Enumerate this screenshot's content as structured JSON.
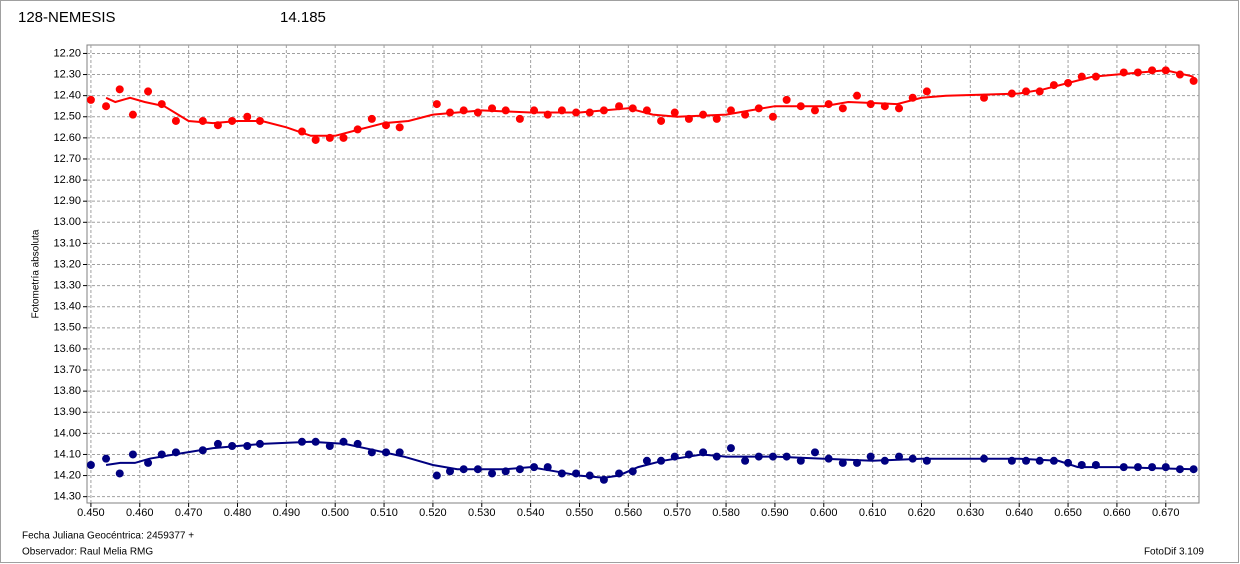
{
  "chart_data": {
    "type": "scatter",
    "title": "128-NEMESIS",
    "subtitle": "14.185",
    "title_color": "#ff0000",
    "subtitle_color": "#000080",
    "ylabel": "Fotometría absoluta",
    "xlabel": "Fecha Juliana Geocéntrica: 2459377 +",
    "observer": "Observador: Raul Melia RMG",
    "software": "FotoDif 3.109",
    "grid": true,
    "y_inverted": true,
    "xlim": [
      0.4492,
      0.6768
    ],
    "ylim": [
      12.16,
      14.33
    ],
    "xticks": [
      {
        "value": 0.45,
        "label": "0.450"
      },
      {
        "value": 0.46,
        "label": "0.460"
      },
      {
        "value": 0.47,
        "label": "0.470"
      },
      {
        "value": 0.48,
        "label": "0.480"
      },
      {
        "value": 0.49,
        "label": "0.490"
      },
      {
        "value": 0.5,
        "label": "0.500"
      },
      {
        "value": 0.51,
        "label": "0.510"
      },
      {
        "value": 0.52,
        "label": "0.520"
      },
      {
        "value": 0.53,
        "label": "0.530"
      },
      {
        "value": 0.54,
        "label": "0.540"
      },
      {
        "value": 0.55,
        "label": "0.550"
      },
      {
        "value": 0.56,
        "label": "0.560"
      },
      {
        "value": 0.57,
        "label": "0.570"
      },
      {
        "value": 0.58,
        "label": "0.580"
      },
      {
        "value": 0.59,
        "label": "0.590"
      },
      {
        "value": 0.6,
        "label": "0.600"
      },
      {
        "value": 0.61,
        "label": "0.610"
      },
      {
        "value": 0.62,
        "label": "0.620"
      },
      {
        "value": 0.63,
        "label": "0.630"
      },
      {
        "value": 0.64,
        "label": "0.640"
      },
      {
        "value": 0.65,
        "label": "0.650"
      },
      {
        "value": 0.66,
        "label": "0.660"
      },
      {
        "value": 0.67,
        "label": "0.670"
      }
    ],
    "yticks": [
      {
        "value": 12.2,
        "label": "12.20"
      },
      {
        "value": 12.3,
        "label": "12.30"
      },
      {
        "value": 12.4,
        "label": "12.40"
      },
      {
        "value": 12.5,
        "label": "12.50"
      },
      {
        "value": 12.6,
        "label": "12.60"
      },
      {
        "value": 12.7,
        "label": "12.70"
      },
      {
        "value": 12.8,
        "label": "12.80"
      },
      {
        "value": 12.9,
        "label": "12.90"
      },
      {
        "value": 13.0,
        "label": "13.00"
      },
      {
        "value": 13.1,
        "label": "13.10"
      },
      {
        "value": 13.2,
        "label": "13.20"
      },
      {
        "value": 13.3,
        "label": "13.30"
      },
      {
        "value": 13.4,
        "label": "13.40"
      },
      {
        "value": 13.5,
        "label": "13.50"
      },
      {
        "value": 13.6,
        "label": "13.60"
      },
      {
        "value": 13.7,
        "label": "13.70"
      },
      {
        "value": 13.8,
        "label": "13.80"
      },
      {
        "value": 13.9,
        "label": "13.90"
      },
      {
        "value": 14.0,
        "label": "14.00"
      },
      {
        "value": 14.1,
        "label": "14.10"
      },
      {
        "value": 14.2,
        "label": "14.20"
      },
      {
        "value": 14.3,
        "label": "14.30"
      }
    ],
    "series": [
      {
        "style": "points",
        "color": "#ff0000",
        "x": [
          0.45,
          0.4531,
          0.4559,
          0.4586,
          0.4617,
          0.4645,
          0.4674,
          0.4729,
          0.476,
          0.4789,
          0.482,
          0.4846,
          0.4932,
          0.496,
          0.4989,
          0.5017,
          0.5046,
          0.5075,
          0.5104,
          0.5132,
          0.5208,
          0.5235,
          0.5263,
          0.5292,
          0.5321,
          0.5349,
          0.5378,
          0.5407,
          0.5435,
          0.5464,
          0.5493,
          0.5521,
          0.555,
          0.5581,
          0.5609,
          0.5638,
          0.5667,
          0.5695,
          0.5724,
          0.5753,
          0.5781,
          0.581,
          0.5839,
          0.5867,
          0.5896,
          0.5924,
          0.5953,
          0.5982,
          0.601,
          0.6039,
          0.6068,
          0.6096,
          0.6125,
          0.6154,
          0.6182,
          0.6211,
          0.6328,
          0.6385,
          0.6414,
          0.6442,
          0.6471,
          0.65,
          0.6528,
          0.6557,
          0.6614,
          0.6643,
          0.6672,
          0.67,
          0.6729,
          0.6757
        ],
        "values": [
          12.42,
          12.45,
          12.37,
          12.49,
          12.38,
          12.44,
          12.52,
          12.52,
          12.54,
          12.52,
          12.5,
          12.52,
          12.57,
          12.61,
          12.6,
          12.6,
          12.56,
          12.51,
          12.54,
          12.55,
          12.44,
          12.48,
          12.47,
          12.48,
          12.46,
          12.47,
          12.51,
          12.47,
          12.49,
          12.47,
          12.48,
          12.48,
          12.47,
          12.45,
          12.46,
          12.47,
          12.52,
          12.48,
          12.51,
          12.49,
          12.51,
          12.47,
          12.49,
          12.46,
          12.5,
          12.42,
          12.45,
          12.47,
          12.44,
          12.46,
          12.4,
          12.44,
          12.45,
          12.46,
          12.41,
          12.38,
          12.41,
          12.39,
          12.38,
          12.38,
          12.35,
          12.34,
          12.31,
          12.31,
          12.29,
          12.29,
          12.28,
          12.28,
          12.3,
          12.33
        ]
      },
      {
        "style": "line",
        "color": "#ff0000",
        "x": [
          0.4531,
          0.455,
          0.458,
          0.461,
          0.465,
          0.47,
          0.475,
          0.48,
          0.485,
          0.49,
          0.495,
          0.5,
          0.505,
          0.51,
          0.515,
          0.52,
          0.525,
          0.53,
          0.54,
          0.55,
          0.56,
          0.565,
          0.57,
          0.58,
          0.585,
          0.59,
          0.6,
          0.605,
          0.615,
          0.62,
          0.625,
          0.64,
          0.645,
          0.65,
          0.655,
          0.66,
          0.665,
          0.67,
          0.6757
        ],
        "values": [
          12.41,
          12.43,
          12.41,
          12.43,
          12.45,
          12.52,
          12.53,
          12.52,
          12.52,
          12.55,
          12.59,
          12.59,
          12.56,
          12.53,
          12.52,
          12.49,
          12.48,
          12.47,
          12.48,
          12.48,
          12.46,
          12.49,
          12.5,
          12.49,
          12.47,
          12.45,
          12.45,
          12.43,
          12.44,
          12.41,
          12.4,
          12.39,
          12.37,
          12.34,
          12.31,
          12.3,
          12.29,
          12.28,
          12.31
        ]
      },
      {
        "style": "points",
        "color": "#000080",
        "x": [
          0.45,
          0.4531,
          0.4559,
          0.4586,
          0.4617,
          0.4645,
          0.4674,
          0.4729,
          0.476,
          0.4789,
          0.482,
          0.4846,
          0.4932,
          0.496,
          0.4989,
          0.5017,
          0.5046,
          0.5075,
          0.5104,
          0.5132,
          0.5208,
          0.5235,
          0.5263,
          0.5292,
          0.5321,
          0.5349,
          0.5378,
          0.5407,
          0.5435,
          0.5464,
          0.5493,
          0.5521,
          0.555,
          0.5581,
          0.5609,
          0.5638,
          0.5667,
          0.5695,
          0.5724,
          0.5753,
          0.5781,
          0.581,
          0.5839,
          0.5867,
          0.5896,
          0.5924,
          0.5953,
          0.5982,
          0.601,
          0.6039,
          0.6068,
          0.6096,
          0.6125,
          0.6154,
          0.6182,
          0.6211,
          0.6328,
          0.6385,
          0.6414,
          0.6442,
          0.6471,
          0.65,
          0.6528,
          0.6557,
          0.6614,
          0.6643,
          0.6672,
          0.67,
          0.6729,
          0.6757
        ],
        "values": [
          14.15,
          14.12,
          14.19,
          14.1,
          14.14,
          14.1,
          14.09,
          14.08,
          14.05,
          14.06,
          14.06,
          14.05,
          14.04,
          14.04,
          14.06,
          14.04,
          14.05,
          14.09,
          14.09,
          14.09,
          14.2,
          14.18,
          14.17,
          14.17,
          14.19,
          14.18,
          14.17,
          14.16,
          14.16,
          14.19,
          14.19,
          14.2,
          14.22,
          14.19,
          14.18,
          14.13,
          14.13,
          14.11,
          14.1,
          14.09,
          14.11,
          14.07,
          14.13,
          14.11,
          14.11,
          14.11,
          14.13,
          14.09,
          14.12,
          14.14,
          14.14,
          14.11,
          14.13,
          14.11,
          14.12,
          14.13,
          14.12,
          14.13,
          14.13,
          14.13,
          14.13,
          14.14,
          14.15,
          14.15,
          14.16,
          14.16,
          14.16,
          14.16,
          14.17,
          14.17
        ]
      },
      {
        "style": "line",
        "color": "#000080",
        "x": [
          0.4531,
          0.456,
          0.459,
          0.462,
          0.467,
          0.475,
          0.485,
          0.495,
          0.502,
          0.508,
          0.514,
          0.52,
          0.525,
          0.535,
          0.54,
          0.545,
          0.55,
          0.555,
          0.558,
          0.562,
          0.567,
          0.575,
          0.58,
          0.59,
          0.6,
          0.61,
          0.62,
          0.63,
          0.64,
          0.648,
          0.652,
          0.66,
          0.6757
        ],
        "values": [
          14.15,
          14.14,
          14.14,
          14.12,
          14.1,
          14.07,
          14.05,
          14.04,
          14.05,
          14.08,
          14.11,
          14.15,
          14.17,
          14.17,
          14.16,
          14.18,
          14.2,
          14.21,
          14.2,
          14.16,
          14.13,
          14.1,
          14.11,
          14.11,
          14.12,
          14.13,
          14.12,
          14.12,
          14.12,
          14.13,
          14.16,
          14.16,
          14.17
        ]
      }
    ]
  }
}
